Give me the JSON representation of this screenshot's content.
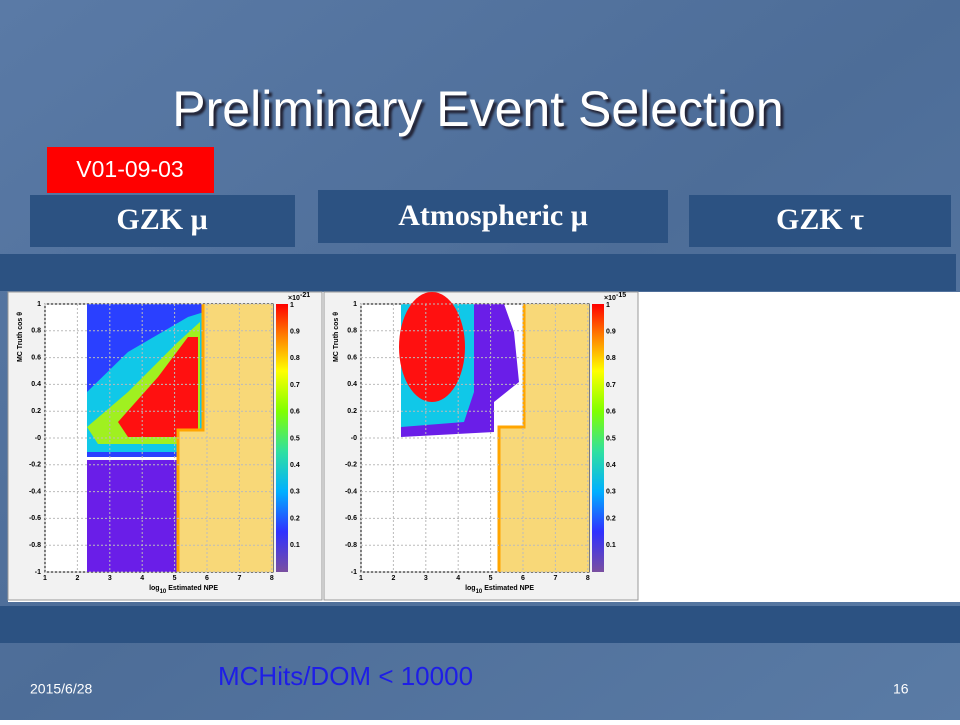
{
  "title": "Preliminary Event Selection",
  "version": "V01-09-03",
  "headers": [
    "GZK  μ",
    "Atmospheric  μ",
    "GZK  τ"
  ],
  "plots": [
    {
      "y_label": "MC Truth cos θ",
      "x_label_log": "log",
      "x_label_sub": "10",
      "x_label_rest": " Estimated NPE",
      "scale_base": "×10",
      "scale_exp": "-21",
      "y_ticks": [
        "1",
        "0.8",
        "0.6",
        "0.4",
        "0.2",
        "-0",
        "-0.2",
        "-0.4",
        "-0.6",
        "-0.8",
        "-1"
      ],
      "x_ticks": [
        "1",
        "2",
        "3",
        "4",
        "5",
        "6",
        "7",
        "8"
      ],
      "color_ticks": [
        "1",
        "0.9",
        "0.8",
        "0.7",
        "0.6",
        "0.5",
        "0.4",
        "0.3",
        "0.2",
        "0.1"
      ]
    },
    {
      "y_label": "MC Truth cos θ",
      "x_label_log": "log",
      "x_label_sub": "10",
      "x_label_rest": " Estimated NPE",
      "scale_base": "×10",
      "scale_exp": "-15",
      "y_ticks": [
        "1",
        "0.8",
        "0.6",
        "0.4",
        "0.2",
        "-0",
        "-0.2",
        "-0.4",
        "-0.6",
        "-0.8",
        "-1"
      ],
      "x_ticks": [
        "1",
        "2",
        "3",
        "4",
        "5",
        "6",
        "7",
        "8"
      ],
      "color_ticks": [
        "1",
        "0.9",
        "0.8",
        "0.7",
        "0.6",
        "0.5",
        "0.4",
        "0.3",
        "0.2",
        "0.1"
      ]
    }
  ],
  "cut_note": "MCHits/DOM < 10000",
  "footer": {
    "date": "2015/6/28",
    "page": "16"
  }
}
